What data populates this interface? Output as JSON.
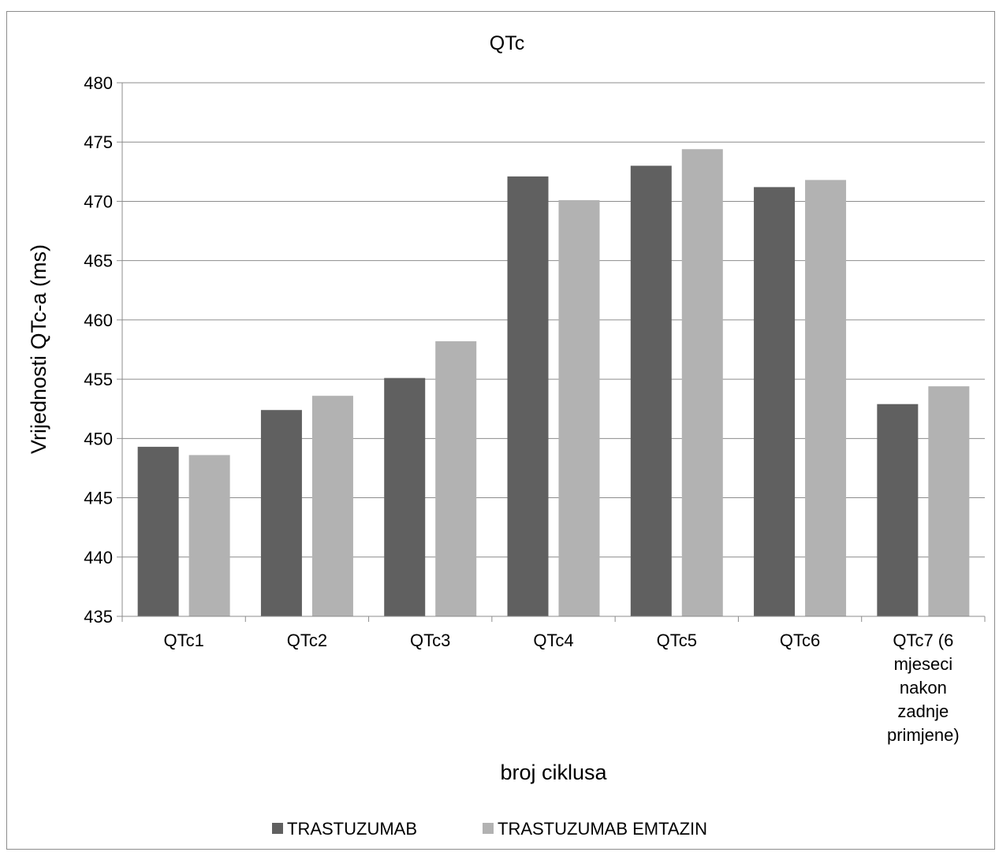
{
  "chart_data": {
    "type": "bar",
    "title": "QTc",
    "xlabel": "broj ciklusa",
    "ylabel": "Vrijednosti QTc-a (ms)",
    "ylim": [
      435,
      480
    ],
    "yticks": [
      435,
      440,
      445,
      450,
      455,
      460,
      465,
      470,
      475,
      480
    ],
    "grid": true,
    "legend_position": "bottom",
    "categories": [
      [
        "QTc1"
      ],
      [
        "QTc2"
      ],
      [
        "QTc3"
      ],
      [
        "QTc4"
      ],
      [
        "QTc5"
      ],
      [
        "QTc6"
      ],
      [
        "QTc7 (6",
        "mjeseci",
        "nakon",
        "zadnje",
        "primjene)"
      ]
    ],
    "series": [
      {
        "name": "TRASTUZUMAB",
        "color": "#606060",
        "values": [
          449.3,
          452.4,
          455.1,
          472.1,
          473.0,
          471.2,
          452.9
        ]
      },
      {
        "name": "TRASTUZUMAB EMTAZIN",
        "color": "#b2b2b2",
        "values": [
          448.6,
          453.6,
          458.2,
          470.1,
          474.4,
          471.8,
          454.4
        ]
      }
    ]
  }
}
